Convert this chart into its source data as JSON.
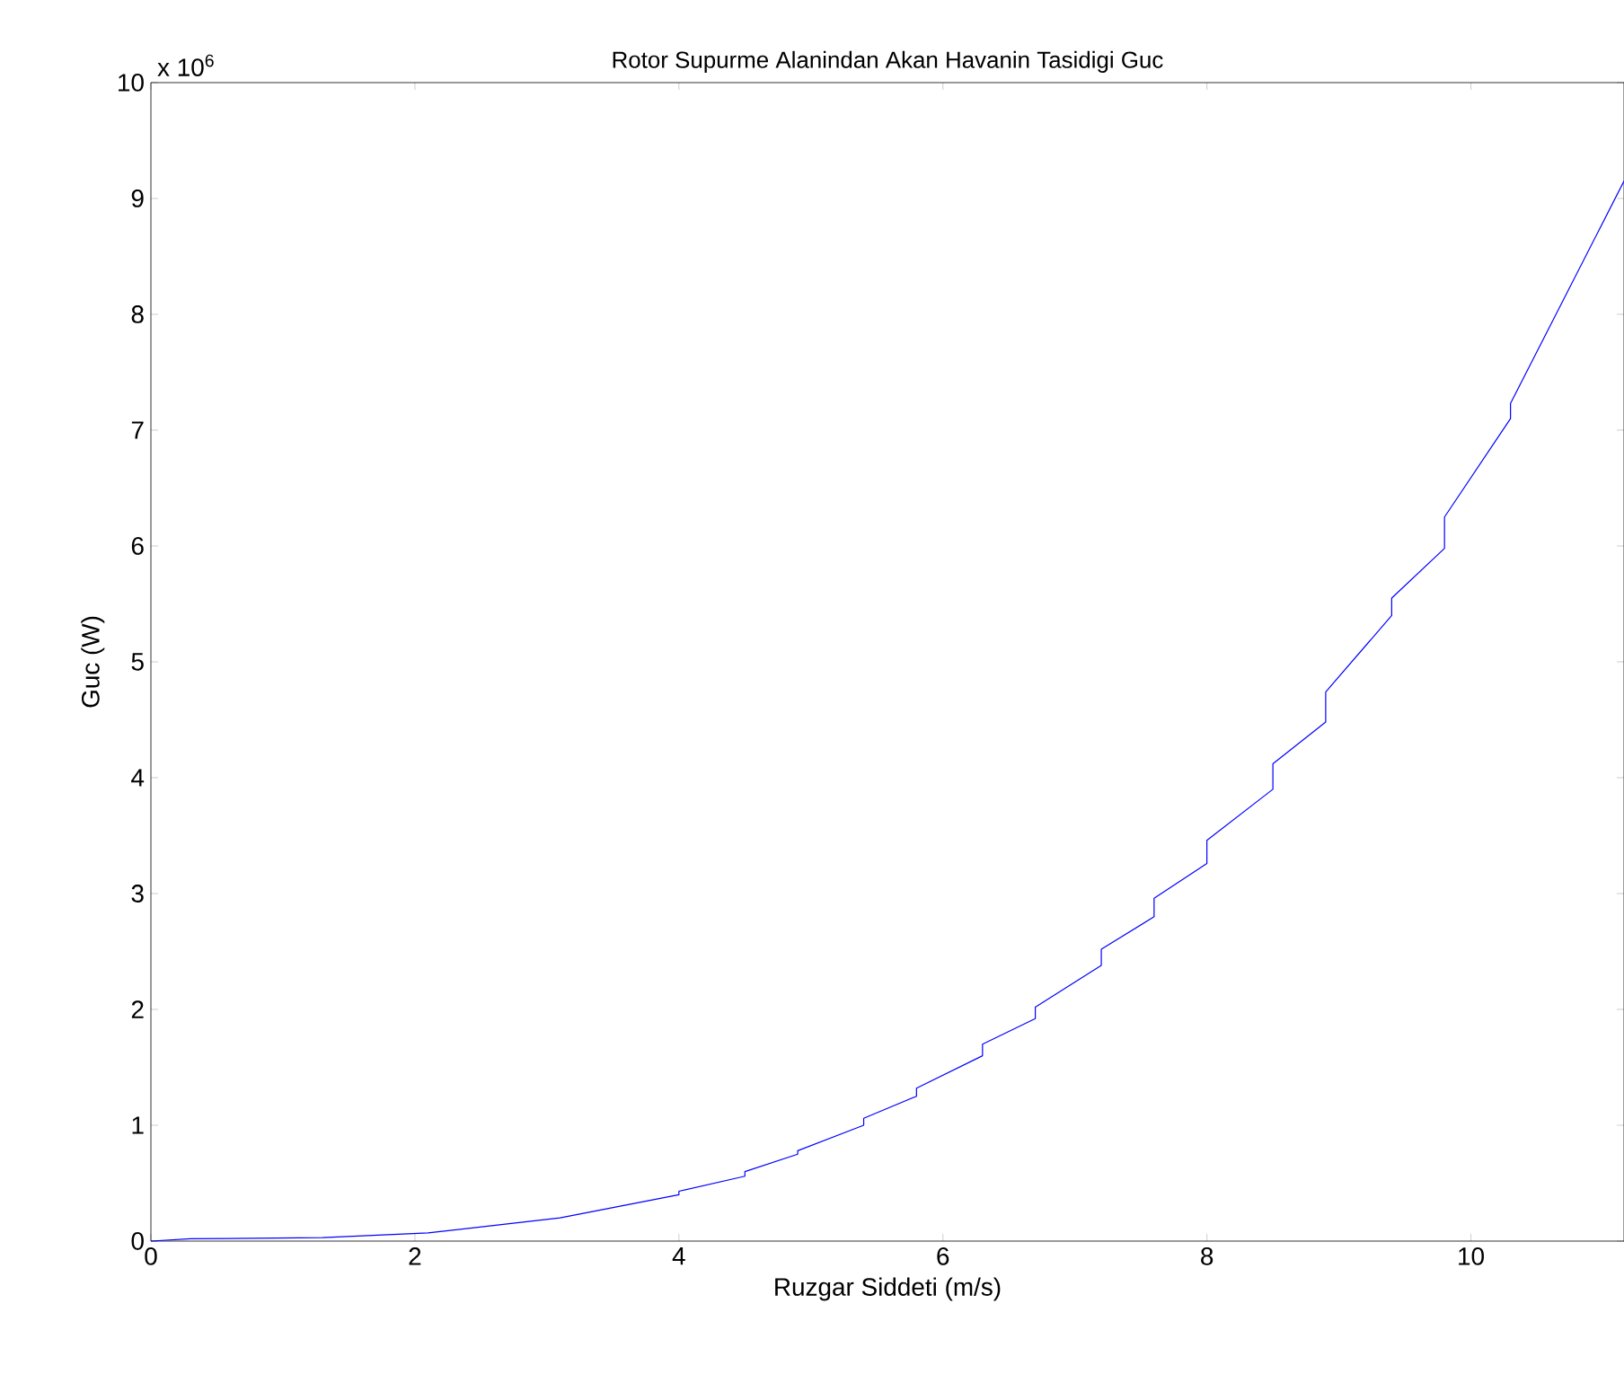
{
  "chart_data": {
    "type": "line",
    "title": "Rotor Supurme Alanindan Akan Havanin Tasidigi Guc",
    "xlabel": "Ruzgar Siddeti (m/s)",
    "ylabel": "Guc (W)",
    "annotations": [
      "x 10$^{6}$"
    ],
    "x": [
      0,
      0.3,
      1.3,
      2.1,
      3.1,
      4.0,
      4.0,
      4.5,
      4.5,
      4.9,
      4.9,
      5.4,
      5.4,
      5.8,
      5.8,
      6.3,
      6.3,
      6.7,
      6.7,
      7.2,
      7.2,
      7.6,
      7.6,
      8.0,
      8.0,
      8.5,
      8.5,
      8.9,
      8.9,
      9.4,
      9.4,
      9.8,
      9.8,
      10.3,
      10.3,
      11.16
    ],
    "series": [
      {
        "color": "#0000ff",
        "values": [
          0,
          0.02,
          0.03,
          0.07,
          0.2,
          0.4,
          0.43,
          0.56,
          0.6,
          0.75,
          0.78,
          1.0,
          1.06,
          1.25,
          1.32,
          1.6,
          1.7,
          1.92,
          2.02,
          2.38,
          2.52,
          2.8,
          2.96,
          3.26,
          3.46,
          3.9,
          4.12,
          4.48,
          4.74,
          5.4,
          5.55,
          5.98,
          6.25,
          7.1,
          7.23,
          9.15
        ]
      }
    ],
    "xlim": [
      0,
      11.16
    ],
    "ylim": [
      0,
      10
    ],
    "xticks": [
      0,
      2,
      4,
      6,
      8,
      10
    ],
    "yticks": [
      0,
      1,
      2,
      3,
      4,
      5,
      6,
      7,
      8,
      9,
      10
    ],
    "grid": false,
    "marker": "none",
    "line_style": "solid"
  }
}
